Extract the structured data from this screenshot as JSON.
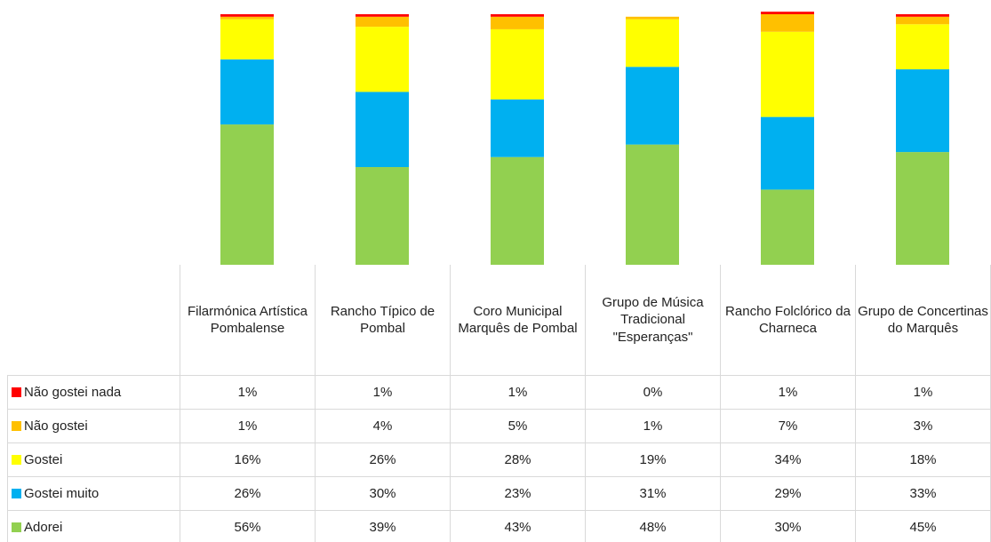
{
  "chart_data": {
    "type": "stacked-bar",
    "ylim": [
      0,
      100
    ],
    "categories": [
      "Filarmónica Artística Pombalense",
      "Rancho Típico de Pombal",
      "Coro Municipal Marquês de Pombal",
      "Grupo de Música Tradicional \"Esperanças\"",
      "Rancho Folclórico da Charneca",
      "Grupo de Concertinas do Marquês"
    ],
    "series": [
      {
        "name": "Adorei",
        "color": "#92d050",
        "values": [
          56,
          39,
          43,
          48,
          30,
          45
        ],
        "value_labels": [
          "56%",
          "39%",
          "43%",
          "48%",
          "30%",
          "45%"
        ]
      },
      {
        "name": "Gostei muito",
        "color": "#00b0f0",
        "values": [
          26,
          30,
          23,
          31,
          29,
          33
        ],
        "value_labels": [
          "26%",
          "30%",
          "23%",
          "31%",
          "29%",
          "33%"
        ]
      },
      {
        "name": "Gostei",
        "color": "#ffff00",
        "values": [
          16,
          26,
          28,
          19,
          34,
          18
        ],
        "value_labels": [
          "16%",
          "26%",
          "28%",
          "19%",
          "34%",
          "18%"
        ]
      },
      {
        "name": "Não gostei",
        "color": "#ffc000",
        "values": [
          1,
          4,
          5,
          1,
          7,
          3
        ],
        "value_labels": [
          "1%",
          "4%",
          "5%",
          "1%",
          "7%",
          "3%"
        ]
      },
      {
        "name": "Não gostei nada",
        "color": "#ff0000",
        "values": [
          1,
          1,
          1,
          0,
          1,
          1
        ],
        "value_labels": [
          "1%",
          "1%",
          "1%",
          "0%",
          "1%",
          "1%"
        ]
      }
    ]
  }
}
